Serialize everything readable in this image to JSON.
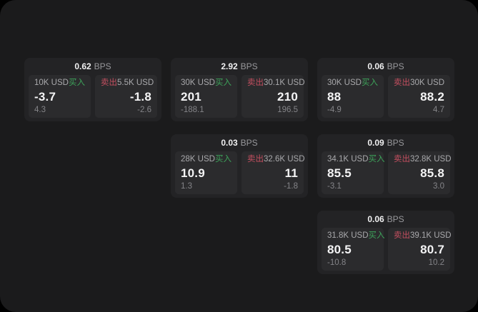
{
  "colors": {
    "buy_green": "#3da35a",
    "sell_red": "#c44f60",
    "panel_bg": "#1b1b1c",
    "card_bg": "#232325",
    "tile_bg": "#2b2b2d"
  },
  "cards": [
    {
      "bps_value": "0.62",
      "bps_unit": "BPS",
      "buy": {
        "amount": "10K USD",
        "side_label": "买入",
        "price": "-3.7",
        "delta": "4.3"
      },
      "sell": {
        "side_label": "卖出",
        "amount": "5.5K USD",
        "price": "-1.8",
        "delta": "-2.6"
      }
    },
    {
      "bps_value": "2.92",
      "bps_unit": "BPS",
      "buy": {
        "amount": "30K USD",
        "side_label": "买入",
        "price": "201",
        "delta": "-188.1"
      },
      "sell": {
        "side_label": "卖出",
        "amount": "30.1K USD",
        "price": "210",
        "delta": "196.5"
      }
    },
    {
      "bps_value": "0.06",
      "bps_unit": "BPS",
      "buy": {
        "amount": "30K USD",
        "side_label": "买入",
        "price": "88",
        "delta": "-4.9"
      },
      "sell": {
        "side_label": "卖出",
        "amount": "30K USD",
        "price": "88.2",
        "delta": "4.7"
      }
    },
    {
      "bps_value": "0.03",
      "bps_unit": "BPS",
      "buy": {
        "amount": "28K USD",
        "side_label": "买入",
        "price": "10.9",
        "delta": "1.3"
      },
      "sell": {
        "side_label": "卖出",
        "amount": "32.6K USD",
        "price": "11",
        "delta": "-1.8"
      }
    },
    {
      "bps_value": "0.09",
      "bps_unit": "BPS",
      "buy": {
        "amount": "34.1K USD",
        "side_label": "买入",
        "price": "85.5",
        "delta": "-3.1"
      },
      "sell": {
        "side_label": "卖出",
        "amount": "32.8K USD",
        "price": "85.8",
        "delta": "3.0"
      }
    },
    {
      "bps_value": "0.06",
      "bps_unit": "BPS",
      "buy": {
        "amount": "31.8K USD",
        "side_label": "买入",
        "price": "80.5",
        "delta": "-10.8"
      },
      "sell": {
        "side_label": "卖出",
        "amount": "39.1K USD",
        "price": "80.7",
        "delta": "10.2"
      }
    }
  ]
}
